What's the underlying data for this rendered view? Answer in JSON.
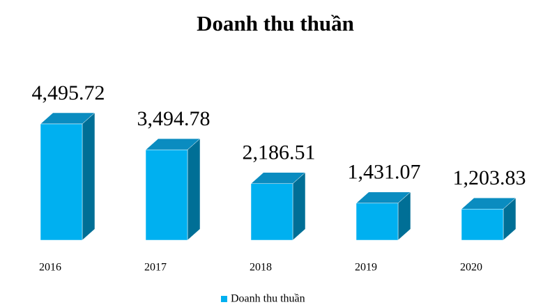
{
  "chart_data": {
    "type": "bar3d",
    "title": "Doanh thu thuần",
    "categories": [
      "2016",
      "2017",
      "2018",
      "2019",
      "2020"
    ],
    "series": [
      {
        "name": "Doanh thu thuần",
        "color": "#00b0f0",
        "values": [
          4495.72,
          3494.78,
          2186.51,
          1431.07,
          1203.83
        ],
        "value_labels": [
          "4,495.72",
          "3,494.78",
          "2,186.51",
          "1,431.07",
          "1,203.83"
        ]
      }
    ],
    "legend": "bottom"
  }
}
